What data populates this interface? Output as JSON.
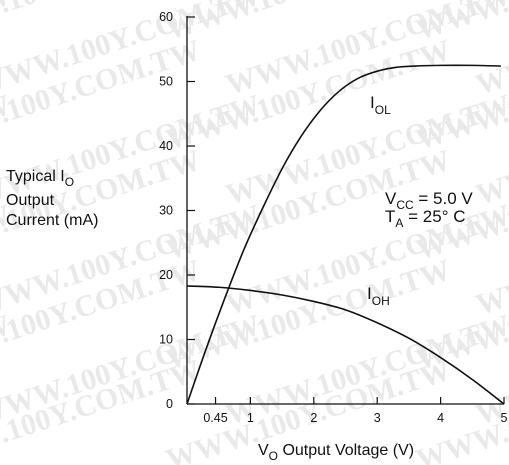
{
  "watermark": "WWW.100Y.COM.TW",
  "chart_data": {
    "type": "line",
    "ylabel_lines": [
      "Typical I",
      "Output",
      "Current (mA)"
    ],
    "ylabel_sub": "O",
    "xlabel_main": "V",
    "xlabel_sub": "O",
    "xlabel_rest": " Output Voltage (V)",
    "xlim": [
      0,
      5
    ],
    "ylim": [
      0,
      60
    ],
    "x_ticks": [
      {
        "value": 0.45,
        "label": "0.45"
      },
      {
        "value": 1,
        "label": "1"
      },
      {
        "value": 2,
        "label": "2"
      },
      {
        "value": 3,
        "label": "3"
      },
      {
        "value": 4,
        "label": "4"
      },
      {
        "value": 5,
        "label": "5"
      }
    ],
    "y_ticks": [
      0,
      10,
      20,
      30,
      40,
      50,
      60
    ],
    "grid": false,
    "series": [
      {
        "name": "IOL",
        "label_main": "I",
        "label_sub": "OL",
        "x": [
          0.0,
          0.3,
          0.6,
          0.9,
          1.2,
          1.5,
          1.8,
          2.1,
          2.4,
          2.7,
          3.0,
          3.3,
          3.6,
          4.0,
          4.5,
          4.95
        ],
        "y": [
          0.0,
          8.5,
          16.5,
          24.0,
          30.5,
          36.5,
          41.5,
          45.5,
          48.5,
          50.5,
          51.6,
          52.2,
          52.4,
          52.5,
          52.5,
          52.4
        ]
      },
      {
        "name": "IOH",
        "label_main": "I",
        "label_sub": "OH",
        "x": [
          0.0,
          0.5,
          1.0,
          1.5,
          2.0,
          2.5,
          3.0,
          3.5,
          4.0,
          4.5,
          5.0
        ],
        "y": [
          18.3,
          18.1,
          17.6,
          16.9,
          15.9,
          14.6,
          12.6,
          10.2,
          7.2,
          3.8,
          0.0
        ]
      }
    ],
    "annotations": {
      "vcc": {
        "main": "V",
        "sub": "CC",
        "rest": " = 5.0 V"
      },
      "ta": {
        "main": "T",
        "sub": "A",
        "rest": "  = 25° C"
      }
    }
  }
}
